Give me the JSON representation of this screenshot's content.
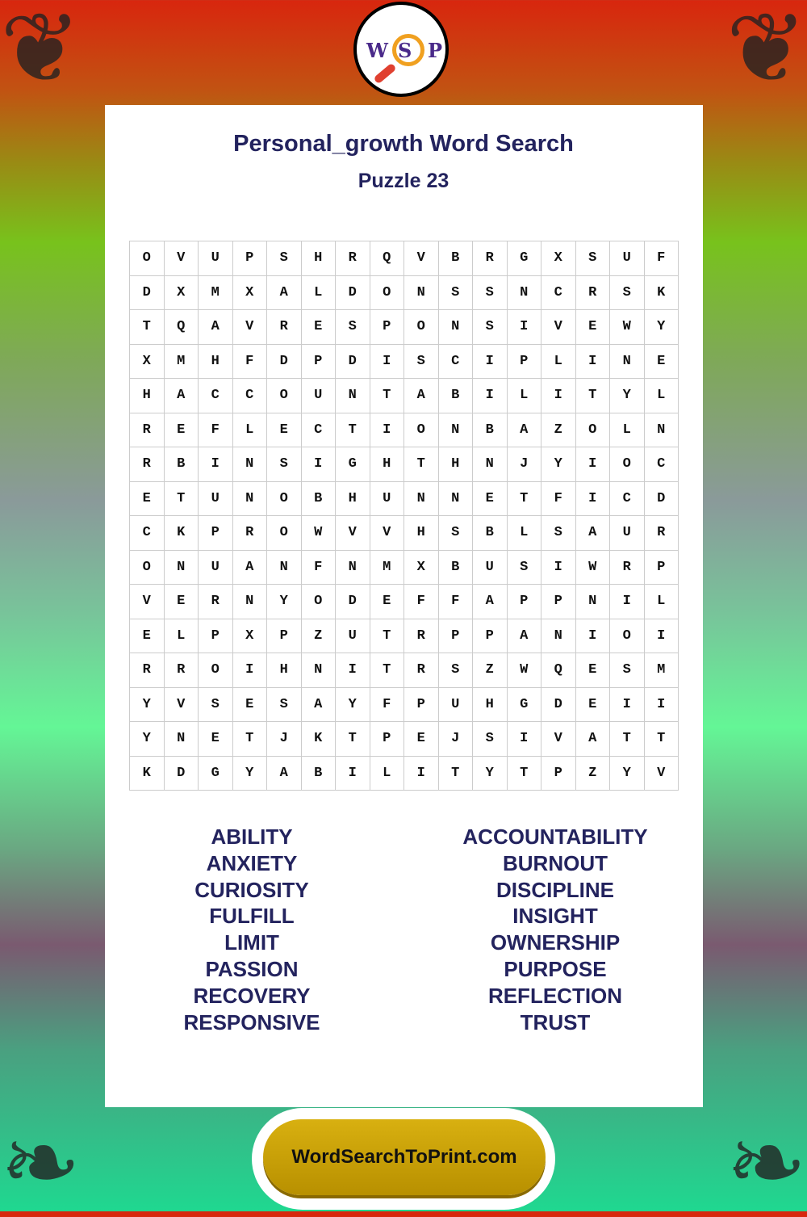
{
  "logo": {
    "letters": [
      "W",
      "S",
      "P"
    ]
  },
  "title": "Personal_growth Word Search",
  "subtitle": "Puzzle 23",
  "grid": [
    "OVUPSHRQVBRGXSUF",
    "DXMXALDONSSNCRSK",
    "TQAVRESPONSIVEWY",
    "XMHFDPDISCIPLINE",
    "HACCOUNTABILITYL",
    "REFLECTIONBAZOLN",
    "RBINSIGHTHNJYIOC",
    "ETUNOBHUNNETFICD",
    "CKPROWVVHSBLSAUR",
    "ONUANFNMXBUSIWRP",
    "VERNYODEFFAPPNIL",
    "ELPXPZUTRPPANIOI",
    "RROIHNITRSZWQESM",
    "YVSESAYFPUHGDEII",
    "YNETJKTPEJSIVATT",
    "KDGYABILITYTPZYV"
  ],
  "words_left": [
    "ABILITY",
    "ANXIETY",
    "CURIOSITY",
    "FULFILL",
    "LIMIT",
    "PASSION",
    "RECOVERY",
    "RESPONSIVE"
  ],
  "words_right": [
    "ACCOUNTABILITY",
    "BURNOUT",
    "DISCIPLINE",
    "INSIGHT",
    "OWNERSHIP",
    "PURPOSE",
    "REFLECTION",
    "TRUST"
  ],
  "footer": "WordSearchToPrint.com"
}
